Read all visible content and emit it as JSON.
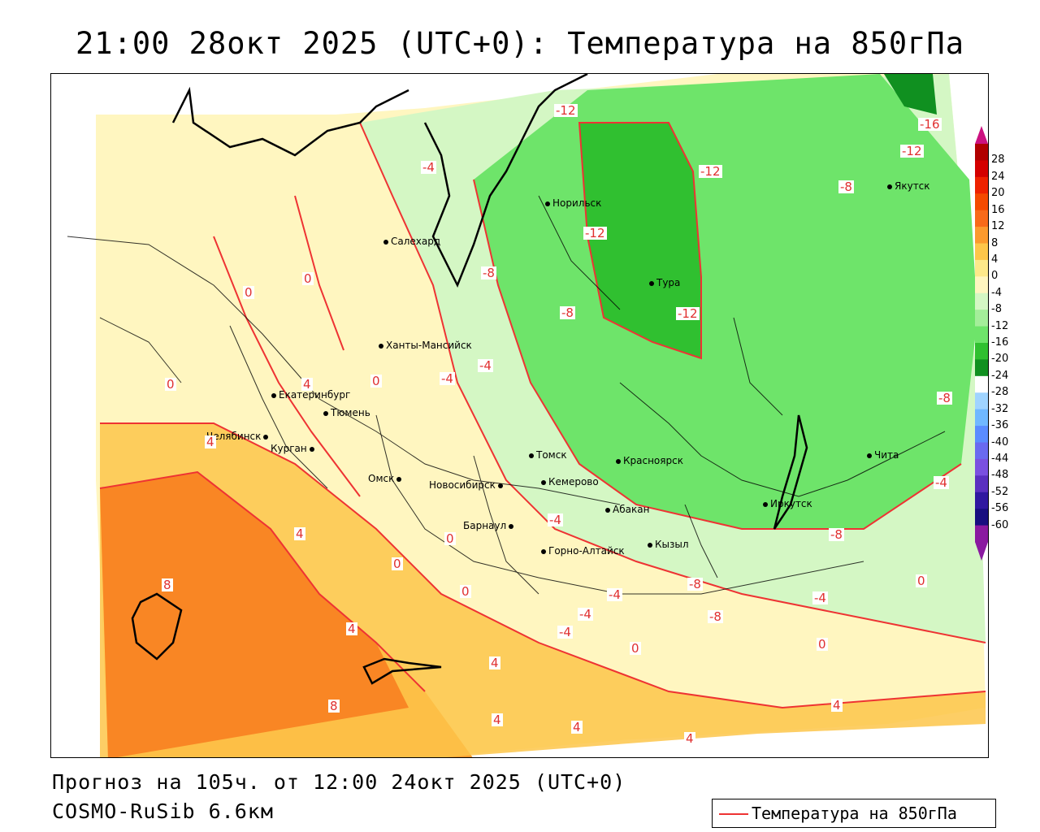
{
  "title": "21:00 28окт 2025 (UTC+0): Температура на 850гПа",
  "footer": {
    "forecast": "Прогноз на 105ч. от 12:00 24окт 2025 (UTC+0)",
    "model": "COSMO-RuSib 6.6км"
  },
  "legend": {
    "line_label": "Температура на 850гПа",
    "line_color": "#ee3333"
  },
  "colorbar": {
    "labels": [
      "28",
      "24",
      "20",
      "16",
      "12",
      "8",
      "4",
      "0",
      "-4",
      "-8",
      "-12",
      "-16",
      "-20",
      "-24",
      "-28",
      "-32",
      "-36",
      "-40",
      "-44",
      "-48",
      "-52",
      "-56",
      "-60"
    ],
    "colors": [
      "#b00000",
      "#d40000",
      "#ee2200",
      "#f44a00",
      "#f86a1a",
      "#fb9a2e",
      "#fdc64a",
      "#fde98a",
      "#fff6c0",
      "#d4f7c4",
      "#a4ee9a",
      "#6ee46a",
      "#30c030",
      "#109020",
      "#ffffff",
      "#a0d4ff",
      "#70b8ff",
      "#5a8cff",
      "#6a6af0",
      "#7a50e0",
      "#5a30c0",
      "#3018a0",
      "#180e80",
      "#8a1aa0"
    ]
  },
  "cities": [
    {
      "name": "Норильск"
    },
    {
      "name": "Якутск"
    },
    {
      "name": "Салехард"
    },
    {
      "name": "Тура"
    },
    {
      "name": "Ханты-Мансийск"
    },
    {
      "name": "Екатеринбург"
    },
    {
      "name": "Тюмень"
    },
    {
      "name": "Челябинск"
    },
    {
      "name": "Курган"
    },
    {
      "name": "Томск"
    },
    {
      "name": "Красноярск"
    },
    {
      "name": "Омск"
    },
    {
      "name": "Новосибирск"
    },
    {
      "name": "Кемерово"
    },
    {
      "name": "Абакан"
    },
    {
      "name": "Иркутск"
    },
    {
      "name": "Чита"
    },
    {
      "name": "Барнаул"
    },
    {
      "name": "Горно-Алтайск"
    },
    {
      "name": "Кызыл"
    }
  ],
  "isotherm_labels": [
    "-12",
    "-16",
    "-12",
    "-4",
    "-12",
    "-8",
    "-12",
    "-8",
    "-8",
    "-12",
    "-8",
    "0",
    "0",
    "0",
    "4",
    "0",
    "-4",
    "-4",
    "-8",
    "4",
    "4",
    "0",
    "-4",
    "-4",
    "-8",
    "-4",
    "8",
    "4",
    "0",
    "-4",
    "-8",
    "-4",
    "0",
    "-4",
    "0",
    "4",
    "0",
    "0",
    "8",
    "4",
    "4",
    "4",
    "4"
  ],
  "colors": {
    "warm": "#fb9a2e",
    "cold": "#30c030"
  }
}
